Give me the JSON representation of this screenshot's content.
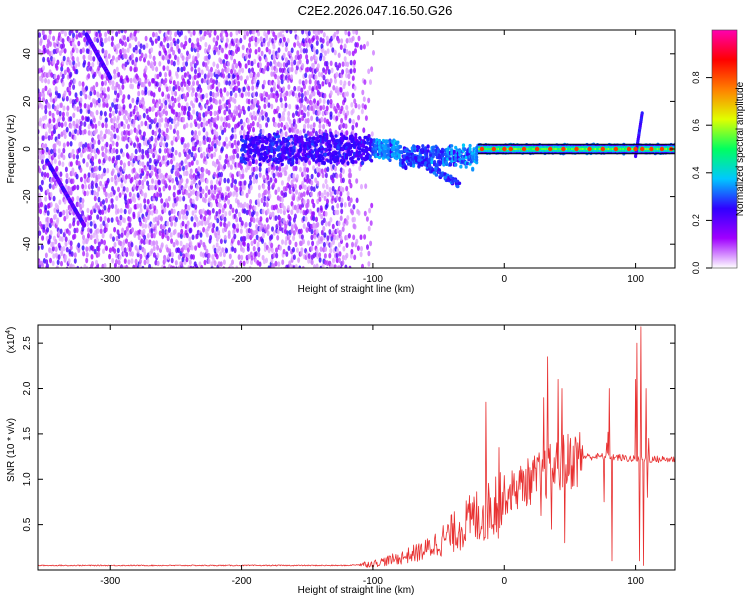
{
  "title": "C2E2.2026.047.16.50.G26",
  "chart_data": [
    {
      "type": "heatmap",
      "title": "C2E2.2026.047.16.50.G26",
      "xlabel": "Height of straight line (km)",
      "ylabel": "Frequency (Hz)",
      "xlim": [
        -355,
        130
      ],
      "ylim": [
        -50,
        50
      ],
      "x_ticks": [
        -300,
        -200,
        -100,
        0,
        100
      ],
      "x_tick_labels": [
        "-300",
        "-200",
        "-100",
        "0",
        "100"
      ],
      "y_ticks": [
        -40,
        -20,
        0,
        20,
        40
      ],
      "y_tick_labels": [
        "-40",
        "-20",
        "0",
        "20",
        "40"
      ],
      "colorbar": {
        "label": "Normalized spectral amplitude",
        "range": [
          0,
          1
        ],
        "ticks": [
          0.0,
          0.2,
          0.4,
          0.6,
          0.8
        ],
        "tick_labels": [
          "0.0",
          "0.2",
          "0.4",
          "0.6",
          "0.8"
        ],
        "colors": [
          "#ffffff",
          "#a000ff",
          "#3000ff",
          "#00c8ff",
          "#00ff60",
          "#e0ff00",
          "#ff8000",
          "#ff0000",
          "#ff00b0"
        ]
      },
      "features": {
        "noise_region_x": [
          -355,
          -100
        ],
        "noise_density_fade_x": [
          -130,
          -95
        ],
        "signal_band_x": [
          -200,
          130
        ],
        "signal_band_frequency": 0,
        "strong_signal_x": [
          -20,
          130
        ],
        "reference_line_frequencies": [
          2,
          -2
        ],
        "descending_branch": {
          "x": [
            -75,
            -35
          ],
          "frequency": [
            -2,
            -15
          ]
        },
        "diagonal_streak_1": {
          "x": [
            -348,
            -320
          ],
          "frequency": [
            -5,
            -32
          ]
        },
        "diagonal_streak_2": {
          "x": [
            -318,
            -300
          ],
          "frequency": [
            48,
            30
          ]
        },
        "spike_near_100": {
          "x": [
            100,
            105
          ],
          "frequency": [
            -3,
            15
          ]
        },
        "hot_points_x": [
          -17,
          -8,
          0,
          5,
          15,
          25,
          35,
          45,
          55,
          65,
          75,
          85,
          95,
          100,
          105,
          112,
          120,
          127
        ],
        "x_sampling": 1.5
      }
    },
    {
      "type": "line",
      "xlabel": "Height of straight line (km)",
      "ylabel": "SNR (10 * v/v)",
      "multiplier_label": "(x10",
      "multiplier_exponent": "4",
      "multiplier_suffix": ")",
      "xlim": [
        -355,
        130
      ],
      "ylim": [
        0,
        2.7
      ],
      "x_ticks": [
        -300,
        -200,
        -100,
        0,
        100
      ],
      "x_tick_labels": [
        "-300",
        "-200",
        "-100",
        "0",
        "100"
      ],
      "y_ticks": [
        0.5,
        1.0,
        1.5,
        2.0,
        2.5
      ],
      "y_tick_labels": [
        "0.5",
        "1.0",
        "1.5",
        "2.0",
        "2.5"
      ],
      "line_color": "#e83030",
      "series": [
        {
          "name": "SNR",
          "x_step": 0.5,
          "anchors": [
            {
              "x": -355,
              "y": 0.05
            },
            {
              "x": -120,
              "y": 0.05
            },
            {
              "x": -100,
              "y": 0.07
            },
            {
              "x": -80,
              "y": 0.13
            },
            {
              "x": -60,
              "y": 0.22
            },
            {
              "x": -45,
              "y": 0.35
            },
            {
              "x": -30,
              "y": 0.5
            },
            {
              "x": -15,
              "y": 0.65
            },
            {
              "x": 0,
              "y": 0.82
            },
            {
              "x": 15,
              "y": 0.95
            },
            {
              "x": 30,
              "y": 1.05
            },
            {
              "x": 45,
              "y": 1.18
            },
            {
              "x": 60,
              "y": 1.25
            },
            {
              "x": 80,
              "y": 1.25
            },
            {
              "x": 100,
              "y": 1.22
            },
            {
              "x": 130,
              "y": 1.22
            }
          ],
          "peaks": [
            {
              "x": -14,
              "y": 1.85
            },
            {
              "x": -4,
              "y": 1.35
            },
            {
              "x": 30,
              "y": 1.9
            },
            {
              "x": 33,
              "y": 2.35
            },
            {
              "x": 41,
              "y": 2.1
            },
            {
              "x": 44,
              "y": 2.0
            },
            {
              "x": 78,
              "y": 1.4
            },
            {
              "x": 79,
              "y": 1.52
            },
            {
              "x": 80,
              "y": 2.0
            },
            {
              "x": 100,
              "y": 2.1
            },
            {
              "x": 101,
              "y": 2.5
            },
            {
              "x": 104,
              "y": 2.68
            },
            {
              "x": 108,
              "y": 2.0
            },
            {
              "x": 110,
              "y": 1.45
            }
          ],
          "dips": [
            {
              "x": 28,
              "y": 0.6
            },
            {
              "x": 36,
              "y": 0.45
            },
            {
              "x": 46,
              "y": 0.3
            },
            {
              "x": 76,
              "y": 0.75
            },
            {
              "x": 82,
              "y": 0.1
            },
            {
              "x": 103,
              "y": 0.1
            },
            {
              "x": 106,
              "y": 0.05
            },
            {
              "x": 109,
              "y": 0.8
            }
          ]
        }
      ]
    }
  ]
}
